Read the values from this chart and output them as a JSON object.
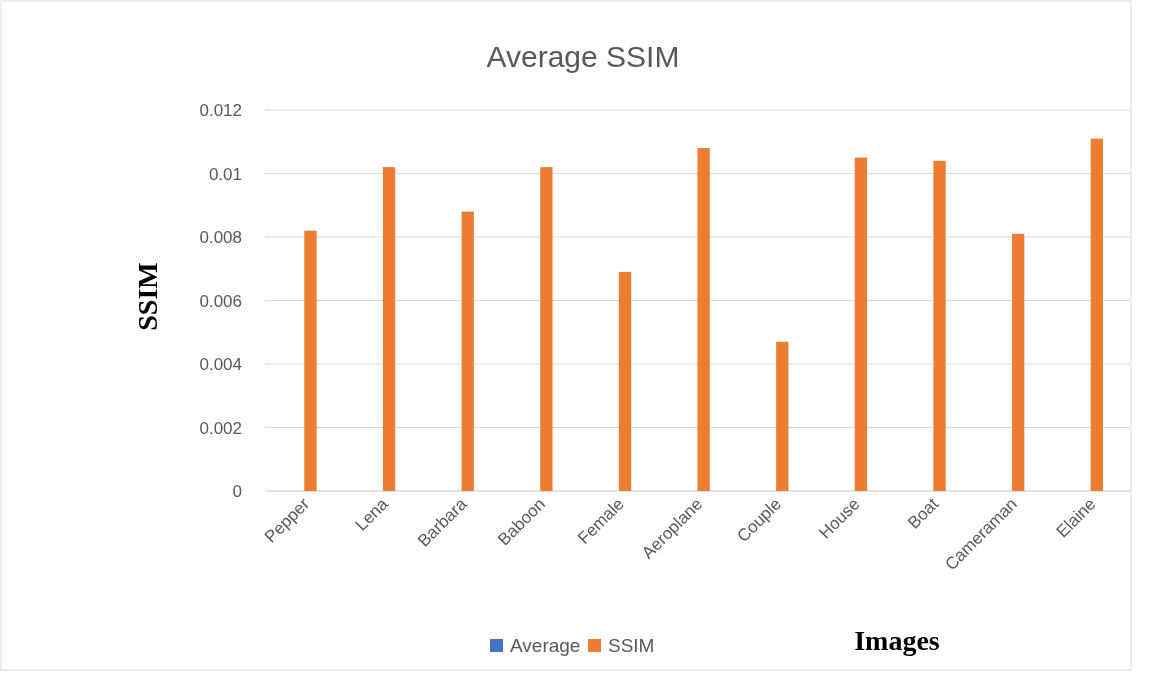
{
  "chart_data": {
    "type": "bar",
    "title": "Average SSIM",
    "xlabel": "Images",
    "ylabel": "SSIM",
    "categories": [
      "Pepper",
      "Lena",
      "Barbara",
      "Baboon",
      "Female",
      "Aeroplane",
      "Couple",
      "House",
      "Boat",
      "Cameraman",
      "Elaine"
    ],
    "series": [
      {
        "name": "Average",
        "color": "#4472c4",
        "values": [
          null,
          null,
          null,
          null,
          null,
          null,
          null,
          null,
          null,
          null,
          null
        ]
      },
      {
        "name": "SSIM",
        "color": "#ed7d31",
        "values": [
          0.0082,
          0.0102,
          0.0088,
          0.0102,
          0.0069,
          0.0108,
          0.0047,
          0.0105,
          0.0104,
          0.0081,
          0.0111
        ]
      }
    ],
    "ylim": [
      0,
      0.012
    ],
    "yticks": [
      0,
      0.002,
      0.004,
      0.006,
      0.008,
      0.01,
      0.012
    ],
    "grid": "y",
    "legend": "bottom"
  }
}
